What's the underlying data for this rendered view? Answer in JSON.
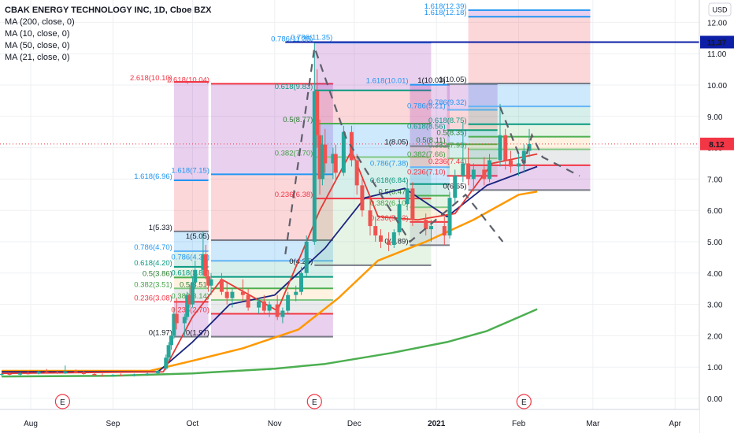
{
  "legend": {
    "title": "CBAK ENERGY TECHNOLOGY INC, 1D, Cboe BZX",
    "indicators": [
      "MA (200, close, 0)",
      "MA (10, close, 0)",
      "MA (50, close, 0)",
      "MA (21, close, 0)"
    ]
  },
  "currency": "USD",
  "colors": {
    "up": "#26a69a",
    "down": "#ef5350",
    "ma200": "#4caf50",
    "ma10": "#e53935",
    "ma50": "#ff9800",
    "ma21": "#1a237e",
    "price_marker": "#f23645",
    "high_marker": "#0d1fa6"
  },
  "chart_data": {
    "type": "candlestick",
    "ylim": [
      -0.3,
      12.4
    ],
    "y_ticks": [
      "0.00",
      "1.00",
      "2.00",
      "3.00",
      "4.00",
      "5.00",
      "6.00",
      "7.00",
      "8.00",
      "9.00",
      "10.00",
      "11.00",
      "12.00"
    ],
    "x_ticks": [
      "Aug",
      "Sep",
      "Oct",
      "Nov",
      "Dec",
      "2021",
      "Feb",
      "Mar",
      "Apr"
    ],
    "x_range_dates": [
      "2020-07-21",
      "2021-04-25"
    ],
    "last_price": "8.12",
    "high_marker": "11.37",
    "earnings_flags": [
      {
        "date": "2020-08-13",
        "label": "E"
      },
      {
        "date": "2020-11-16",
        "label": "E"
      },
      {
        "date": "2021-02-03",
        "label": "E"
      }
    ],
    "candles": [
      [
        "2020-07-21",
        0.75,
        0.8,
        0.72,
        0.78
      ],
      [
        "2020-07-24",
        0.78,
        0.82,
        0.74,
        0.76
      ],
      [
        "2020-07-28",
        0.76,
        0.84,
        0.73,
        0.8
      ],
      [
        "2020-07-31",
        0.8,
        0.86,
        0.76,
        0.79
      ],
      [
        "2020-08-04",
        0.79,
        0.88,
        0.77,
        0.85
      ],
      [
        "2020-08-07",
        0.85,
        0.94,
        0.8,
        0.83
      ],
      [
        "2020-08-11",
        0.83,
        0.9,
        0.78,
        0.8
      ],
      [
        "2020-08-14",
        0.8,
        1.05,
        0.78,
        0.86
      ],
      [
        "2020-08-18",
        0.86,
        0.92,
        0.8,
        0.82
      ],
      [
        "2020-08-21",
        0.82,
        0.88,
        0.76,
        0.78
      ],
      [
        "2020-08-25",
        0.78,
        0.84,
        0.72,
        0.74
      ],
      [
        "2020-08-28",
        0.74,
        0.8,
        0.7,
        0.72
      ],
      [
        "2020-09-01",
        0.72,
        0.78,
        0.7,
        0.75
      ],
      [
        "2020-09-04",
        0.75,
        0.8,
        0.71,
        0.73
      ],
      [
        "2020-09-09",
        0.73,
        0.79,
        0.7,
        0.76
      ],
      [
        "2020-09-14",
        0.76,
        0.82,
        0.72,
        0.79
      ],
      [
        "2020-09-18",
        0.8,
        0.92,
        0.78,
        0.88
      ],
      [
        "2020-09-21",
        0.95,
        1.4,
        0.9,
        1.3
      ],
      [
        "2020-09-22",
        1.3,
        1.8,
        1.2,
        1.7
      ],
      [
        "2020-09-23",
        1.7,
        2.1,
        1.55,
        2.0
      ],
      [
        "2020-09-24",
        2.0,
        2.9,
        1.9,
        2.7
      ],
      [
        "2020-09-25",
        2.7,
        3.2,
        2.2,
        2.4
      ],
      [
        "2020-09-28",
        2.4,
        2.7,
        1.97,
        2.6
      ],
      [
        "2020-09-29",
        2.6,
        3.4,
        2.5,
        3.3
      ],
      [
        "2020-09-30",
        3.3,
        3.6,
        2.9,
        3.0
      ],
      [
        "2020-10-01",
        3.0,
        3.9,
        2.9,
        3.7
      ],
      [
        "2020-10-02",
        3.7,
        4.4,
        3.5,
        4.1
      ],
      [
        "2020-10-05",
        4.1,
        5.33,
        3.9,
        4.6
      ],
      [
        "2020-10-06",
        4.6,
        4.9,
        3.8,
        3.9
      ],
      [
        "2020-10-07",
        3.9,
        4.1,
        3.4,
        3.6
      ],
      [
        "2020-10-08",
        3.6,
        4.0,
        3.3,
        3.8
      ],
      [
        "2020-10-12",
        3.8,
        4.0,
        3.3,
        3.4
      ],
      [
        "2020-10-14",
        3.4,
        3.7,
        3.0,
        3.2
      ],
      [
        "2020-10-16",
        3.2,
        3.5,
        2.9,
        3.4
      ],
      [
        "2020-10-20",
        3.4,
        3.8,
        3.1,
        3.3
      ],
      [
        "2020-10-22",
        3.3,
        3.5,
        2.8,
        2.9
      ],
      [
        "2020-10-26",
        2.9,
        3.2,
        2.7,
        3.1
      ],
      [
        "2020-10-28",
        3.1,
        3.3,
        2.7,
        2.8
      ],
      [
        "2020-10-30",
        2.8,
        3.1,
        2.6,
        3.0
      ],
      [
        "2020-11-02",
        3.0,
        3.3,
        2.5,
        2.6
      ],
      [
        "2020-11-04",
        2.6,
        2.9,
        2.4,
        2.8
      ],
      [
        "2020-11-06",
        2.8,
        3.4,
        2.7,
        3.3
      ],
      [
        "2020-11-09",
        3.3,
        3.6,
        3.1,
        3.4
      ],
      [
        "2020-11-11",
        3.4,
        4.2,
        3.3,
        4.0
      ],
      [
        "2020-11-13",
        4.0,
        5.2,
        3.9,
        5.0
      ],
      [
        "2020-11-16",
        5.0,
        11.35,
        4.9,
        9.8
      ],
      [
        "2020-11-17",
        9.8,
        10.5,
        8.0,
        8.4
      ],
      [
        "2020-11-18",
        8.4,
        8.9,
        6.5,
        7.0
      ],
      [
        "2020-11-19",
        7.0,
        8.4,
        6.8,
        8.1
      ],
      [
        "2020-11-20",
        8.1,
        8.6,
        7.2,
        7.5
      ],
      [
        "2020-11-23",
        7.5,
        8.0,
        7.0,
        7.8
      ],
      [
        "2020-11-24",
        7.8,
        8.1,
        6.9,
        7.2
      ],
      [
        "2020-11-27",
        7.2,
        8.7,
        7.1,
        8.5
      ],
      [
        "2020-11-30",
        8.5,
        8.7,
        7.4,
        7.6
      ],
      [
        "2020-12-02",
        7.6,
        7.8,
        6.5,
        6.8
      ],
      [
        "2020-12-04",
        6.8,
        7.0,
        5.8,
        6.0
      ],
      [
        "2020-12-07",
        6.0,
        6.4,
        5.2,
        5.5
      ],
      [
        "2020-12-09",
        5.5,
        5.8,
        5.0,
        5.2
      ],
      [
        "2020-12-11",
        5.2,
        5.4,
        4.8,
        5.0
      ],
      [
        "2020-12-14",
        5.0,
        5.3,
        4.7,
        4.9
      ],
      [
        "2020-12-16",
        4.9,
        5.4,
        4.8,
        5.3
      ],
      [
        "2020-12-18",
        5.3,
        6.4,
        5.2,
        6.2
      ],
      [
        "2020-12-21",
        6.2,
        6.9,
        6.0,
        6.7
      ],
      [
        "2020-12-23",
        6.7,
        6.9,
        5.5,
        5.7
      ],
      [
        "2020-12-28",
        5.7,
        5.9,
        5.2,
        5.4
      ],
      [
        "2020-12-30",
        5.4,
        5.7,
        5.0,
        5.5
      ],
      [
        "2021-01-04",
        5.5,
        5.8,
        4.9,
        5.2
      ],
      [
        "2021-01-06",
        5.2,
        6.6,
        5.1,
        6.4
      ],
      [
        "2021-01-08",
        6.4,
        7.3,
        6.2,
        7.1
      ],
      [
        "2021-01-11",
        7.1,
        8.8,
        6.9,
        7.5
      ],
      [
        "2021-01-13",
        7.5,
        8.0,
        6.8,
        7.0
      ],
      [
        "2021-01-15",
        7.0,
        7.5,
        6.6,
        7.3
      ],
      [
        "2021-01-19",
        7.3,
        7.7,
        6.8,
        7.0
      ],
      [
        "2021-01-21",
        7.0,
        7.8,
        6.9,
        7.6
      ],
      [
        "2021-01-25",
        7.6,
        9.4,
        7.4,
        8.4
      ],
      [
        "2021-01-27",
        8.4,
        8.6,
        7.3,
        7.6
      ],
      [
        "2021-01-29",
        7.6,
        7.9,
        7.2,
        7.4
      ],
      [
        "2021-02-01",
        7.4,
        7.8,
        7.1,
        7.5
      ],
      [
        "2021-02-03",
        7.5,
        8.1,
        7.2,
        7.9
      ],
      [
        "2021-02-05",
        7.9,
        8.6,
        7.7,
        8.12
      ]
    ],
    "moving_averages": [
      {
        "name": "MA (200, close, 0)",
        "color_key": "ma200",
        "points": [
          [
            "2020-07-21",
            0.7
          ],
          [
            "2020-09-01",
            0.72
          ],
          [
            "2020-10-01",
            0.8
          ],
          [
            "2020-11-01",
            0.95
          ],
          [
            "2020-11-20",
            1.1
          ],
          [
            "2020-12-15",
            1.45
          ],
          [
            "2021-01-05",
            1.8
          ],
          [
            "2021-01-20",
            2.15
          ],
          [
            "2021-02-08",
            2.85
          ]
        ]
      },
      {
        "name": "MA (50, close, 0)",
        "color_key": "ma50",
        "points": [
          [
            "2020-07-21",
            0.88
          ],
          [
            "2020-09-15",
            0.88
          ],
          [
            "2020-10-01",
            1.2
          ],
          [
            "2020-10-20",
            1.6
          ],
          [
            "2020-11-10",
            2.2
          ],
          [
            "2020-11-25",
            3.2
          ],
          [
            "2020-12-10",
            4.4
          ],
          [
            "2020-12-28",
            5.0
          ],
          [
            "2021-01-15",
            5.7
          ],
          [
            "2021-02-01",
            6.5
          ],
          [
            "2021-02-08",
            6.6
          ]
        ]
      },
      {
        "name": "MA (21, close, 0)",
        "color_key": "ma21",
        "points": [
          [
            "2020-07-21",
            0.85
          ],
          [
            "2020-09-18",
            0.85
          ],
          [
            "2020-10-01",
            1.8
          ],
          [
            "2020-10-15",
            3.0
          ],
          [
            "2020-11-01",
            3.3
          ],
          [
            "2020-11-20",
            4.8
          ],
          [
            "2020-12-05",
            6.4
          ],
          [
            "2020-12-20",
            6.7
          ],
          [
            "2021-01-05",
            5.8
          ],
          [
            "2021-01-20",
            6.8
          ],
          [
            "2021-02-08",
            7.4
          ]
        ]
      },
      {
        "name": "MA (10, close, 0)",
        "color_key": "ma10",
        "points": [
          [
            "2020-07-21",
            0.8
          ],
          [
            "2020-09-20",
            0.85
          ],
          [
            "2020-10-01",
            2.6
          ],
          [
            "2020-10-12",
            3.8
          ],
          [
            "2020-11-02",
            2.8
          ],
          [
            "2020-11-18",
            6.0
          ],
          [
            "2020-11-30",
            7.9
          ],
          [
            "2020-12-10",
            5.8
          ],
          [
            "2020-12-25",
            5.7
          ],
          [
            "2021-01-08",
            5.9
          ],
          [
            "2021-01-22",
            7.5
          ],
          [
            "2021-02-08",
            7.8
          ]
        ]
      }
    ],
    "fib_sets": [
      {
        "start": "2020-09-24",
        "end": "2020-10-07",
        "levels": [
          [
            "2.618(10.10)",
            10.1
          ],
          [
            "1.618(6.96)",
            6.96
          ],
          [
            "1(5.33)",
            5.33
          ],
          [
            "0.786(4.70)",
            4.7
          ],
          [
            "0.618(4.20)",
            4.2
          ],
          [
            "0.5(3.86)",
            3.86
          ],
          [
            "0.382(3.51)",
            3.51
          ],
          [
            "0.236(3.08)",
            3.08
          ],
          [
            "0(1.97)",
            1.97
          ]
        ]
      },
      {
        "start": "2020-10-08",
        "end": "2020-11-23",
        "levels": [
          [
            "2.618(10.04)",
            10.04
          ],
          [
            "1.618(7.15)",
            7.15
          ],
          [
            "1(5.05)",
            5.05
          ],
          [
            "0.786(4.39)",
            4.39
          ],
          [
            "0.618(3.88)",
            3.88
          ],
          [
            "0.5(3.51)",
            3.51
          ],
          [
            "0.382(3.14)",
            3.14
          ],
          [
            "0.236(2.70)",
            2.7
          ],
          [
            "0(1.97)",
            1.97
          ]
        ]
      },
      {
        "start": "2020-11-16",
        "end": "2020-12-30",
        "levels": [
          [
            "0.786(11.35)",
            11.35
          ],
          [
            "0.618(9.83)",
            9.83
          ],
          [
            "0.5(8.77)",
            8.77
          ],
          [
            "0.382(7.70)",
            7.7
          ],
          [
            "0.236(6.38)",
            6.38
          ],
          [
            "0(4.25)",
            4.25
          ]
        ]
      },
      {
        "start": "2020-12-22",
        "end": "2021-01-06",
        "levels": [
          [
            "1.618(10.01)",
            10.01
          ],
          [
            "1(8.05)",
            8.05
          ],
          [
            "0.786(7.38)",
            7.38
          ],
          [
            "0.618(6.84)",
            6.84
          ],
          [
            "0.5(6.47)",
            6.47
          ],
          [
            "0.382(6.10)",
            6.1
          ],
          [
            "0.236(5.63)",
            5.63
          ],
          [
            "0(4.89)",
            4.89
          ]
        ]
      },
      {
        "start": "2021-01-05",
        "end": "2021-01-24",
        "levels": [
          [
            "1(10.03)",
            10.03
          ],
          [
            "0.786(9.21)",
            9.21
          ],
          [
            "0.618(8.56)",
            8.56
          ],
          [
            "0.5(8.11)",
            8.11
          ],
          [
            "0.382(7.66)",
            7.66
          ],
          [
            "0.236(7.10)",
            7.1
          ]
        ]
      },
      {
        "start": "2021-01-13",
        "end": "2021-02-28",
        "levels": [
          [
            "1.618(12.39)",
            12.39
          ],
          [
            "1.618(12.18)",
            12.18
          ],
          [
            "1(10.05)",
            10.05
          ],
          [
            "0.786(9.32)",
            9.32
          ],
          [
            "0.618(8.75)",
            8.75
          ],
          [
            "0.5(8.35)",
            8.35
          ],
          [
            "0.382(7.95)",
            7.95
          ],
          [
            "0.236(7.44)",
            7.44
          ],
          [
            "0(6.65)",
            6.65
          ]
        ]
      }
    ],
    "high_line": {
      "start": "2020-11-05",
      "end": "2021-04-25",
      "value": 11.37,
      "label": "0.786(11.35)"
    },
    "projection_paths": [
      [
        [
          "2020-11-05",
          4.6
        ],
        [
          "2020-11-16",
          11.2
        ],
        [
          "2020-11-28",
          8.3
        ],
        [
          "2020-12-22",
          5.0
        ],
        [
          "2021-01-12",
          6.5
        ],
        [
          "2021-01-26",
          5.0
        ]
      ],
      [
        [
          "2021-01-25",
          9.3
        ],
        [
          "2021-02-01",
          7.8
        ],
        [
          "2021-02-03",
          7.5
        ],
        [
          "2021-02-06",
          8.4
        ],
        [
          "2021-02-10",
          7.7
        ],
        [
          "2021-02-24",
          7.1
        ]
      ]
    ]
  }
}
